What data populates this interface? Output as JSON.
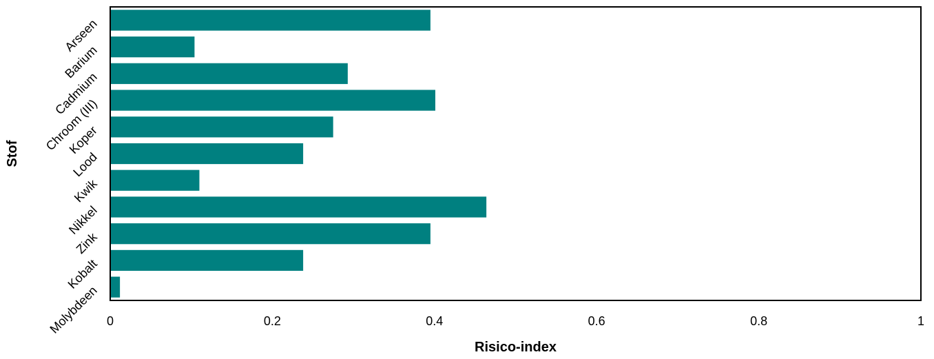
{
  "chart_data": {
    "type": "bar",
    "orientation": "horizontal",
    "categories": [
      "Arseen",
      "Barium",
      "Cadmium",
      "Chroom (III)",
      "Koper",
      "Lood",
      "Kwik",
      "Nikkel",
      "Zink",
      "Kobalt",
      "Molybdeen"
    ],
    "values": [
      0.395,
      0.104,
      0.293,
      0.401,
      0.275,
      0.238,
      0.11,
      0.464,
      0.395,
      0.238,
      0.012
    ],
    "xlabel": "Risico-index",
    "ylabel": "Stof",
    "xlim": [
      0,
      1
    ],
    "xticks": [
      "0",
      "0.2",
      "0.4",
      "0.6",
      "0.8",
      "1"
    ],
    "grid": false,
    "legend": "none",
    "colors": {
      "bar": "#008080",
      "frame": "#000000"
    }
  }
}
